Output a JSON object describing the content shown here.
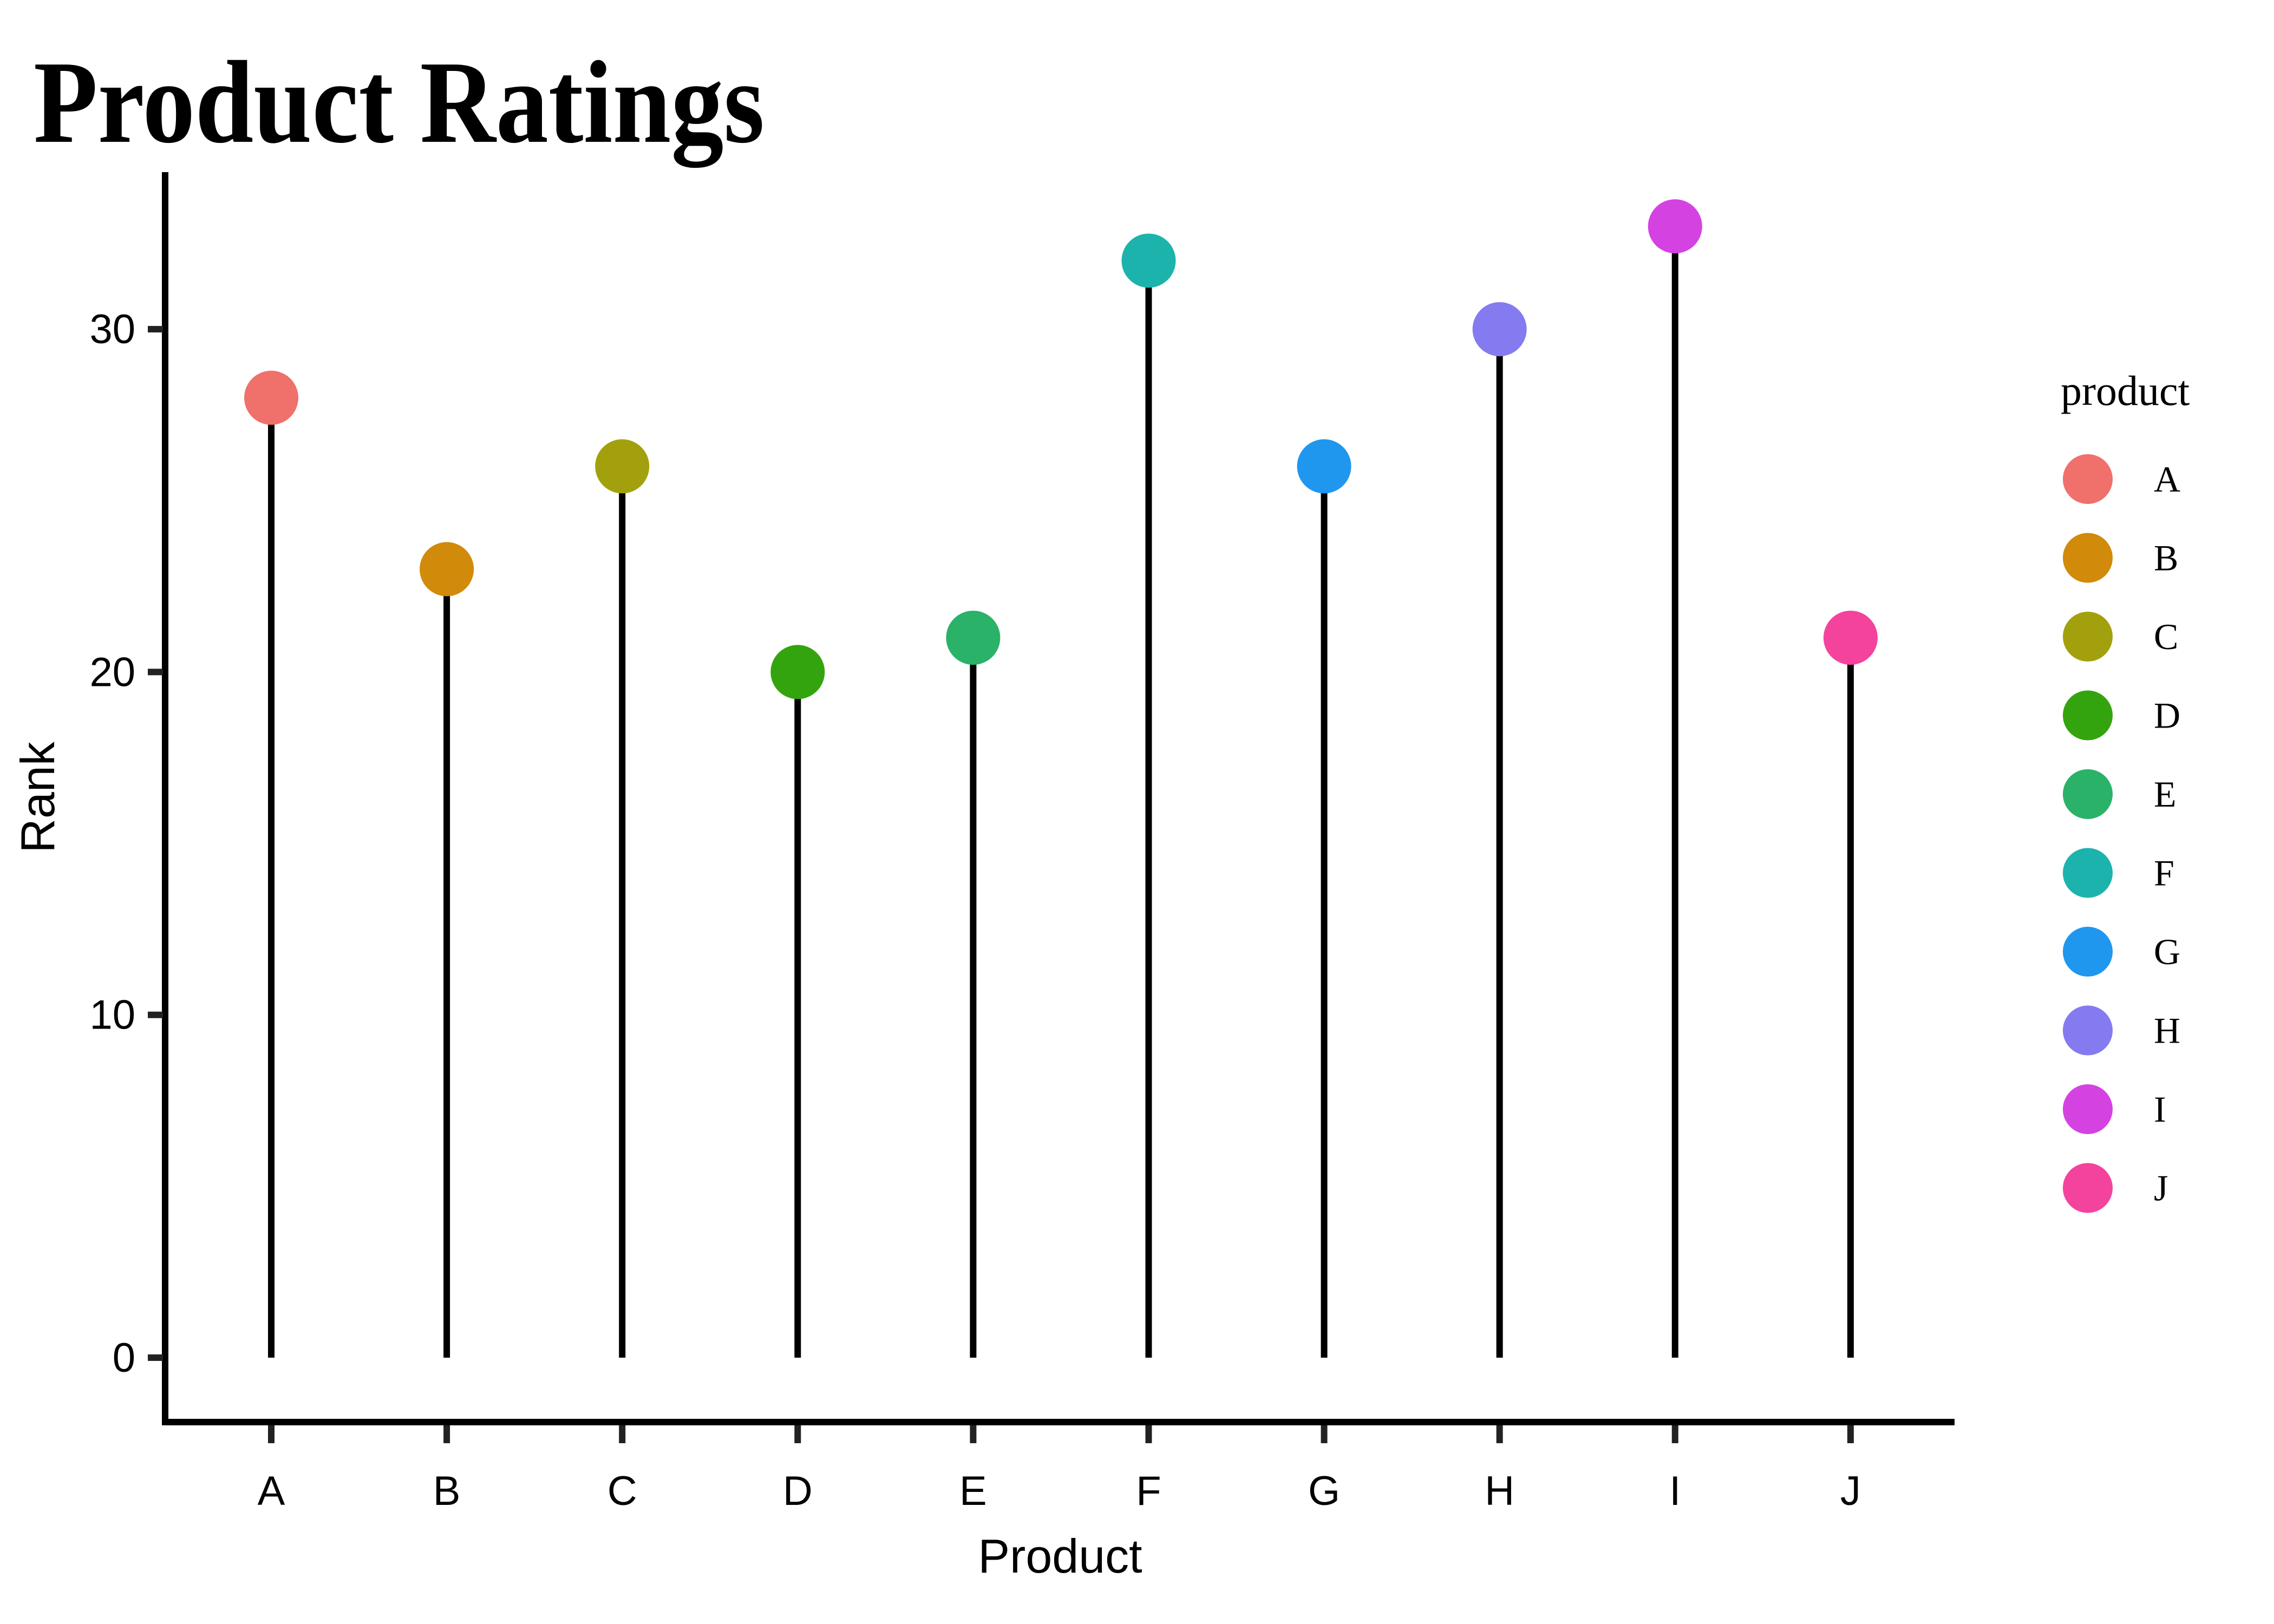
{
  "page_title": "Product Ratings",
  "chart_data": {
    "type": "lollipop",
    "title": "Product Ratings",
    "xlabel": "Product",
    "ylabel": "Rank",
    "categories": [
      "A",
      "B",
      "C",
      "D",
      "E",
      "F",
      "G",
      "H",
      "I",
      "J"
    ],
    "values": [
      28,
      23,
      26,
      20,
      21,
      32,
      26,
      30,
      33,
      21
    ],
    "colors": [
      "#F0706C",
      "#D18A09",
      "#A2A10D",
      "#33A40D",
      "#2AB269",
      "#1CB3AD",
      "#2097EE",
      "#847BF0",
      "#D542E2",
      "#F4439C"
    ],
    "yticks": [
      0,
      10,
      20,
      30
    ],
    "ylim": [
      0,
      34.6
    ],
    "grid": false,
    "stem_color": "#000000",
    "axis_color": "#000000",
    "tick_color": "#222222",
    "legend": {
      "title": "product",
      "position": "right",
      "entries": [
        {
          "label": "A",
          "color": "#F0706C"
        },
        {
          "label": "B",
          "color": "#D18A09"
        },
        {
          "label": "C",
          "color": "#A2A10D"
        },
        {
          "label": "D",
          "color": "#33A40D"
        },
        {
          "label": "E",
          "color": "#2AB269"
        },
        {
          "label": "F",
          "color": "#1CB3AD"
        },
        {
          "label": "G",
          "color": "#2097EE"
        },
        {
          "label": "H",
          "color": "#847BF0"
        },
        {
          "label": "I",
          "color": "#D542E2"
        },
        {
          "label": "J",
          "color": "#F4439C"
        }
      ]
    }
  }
}
